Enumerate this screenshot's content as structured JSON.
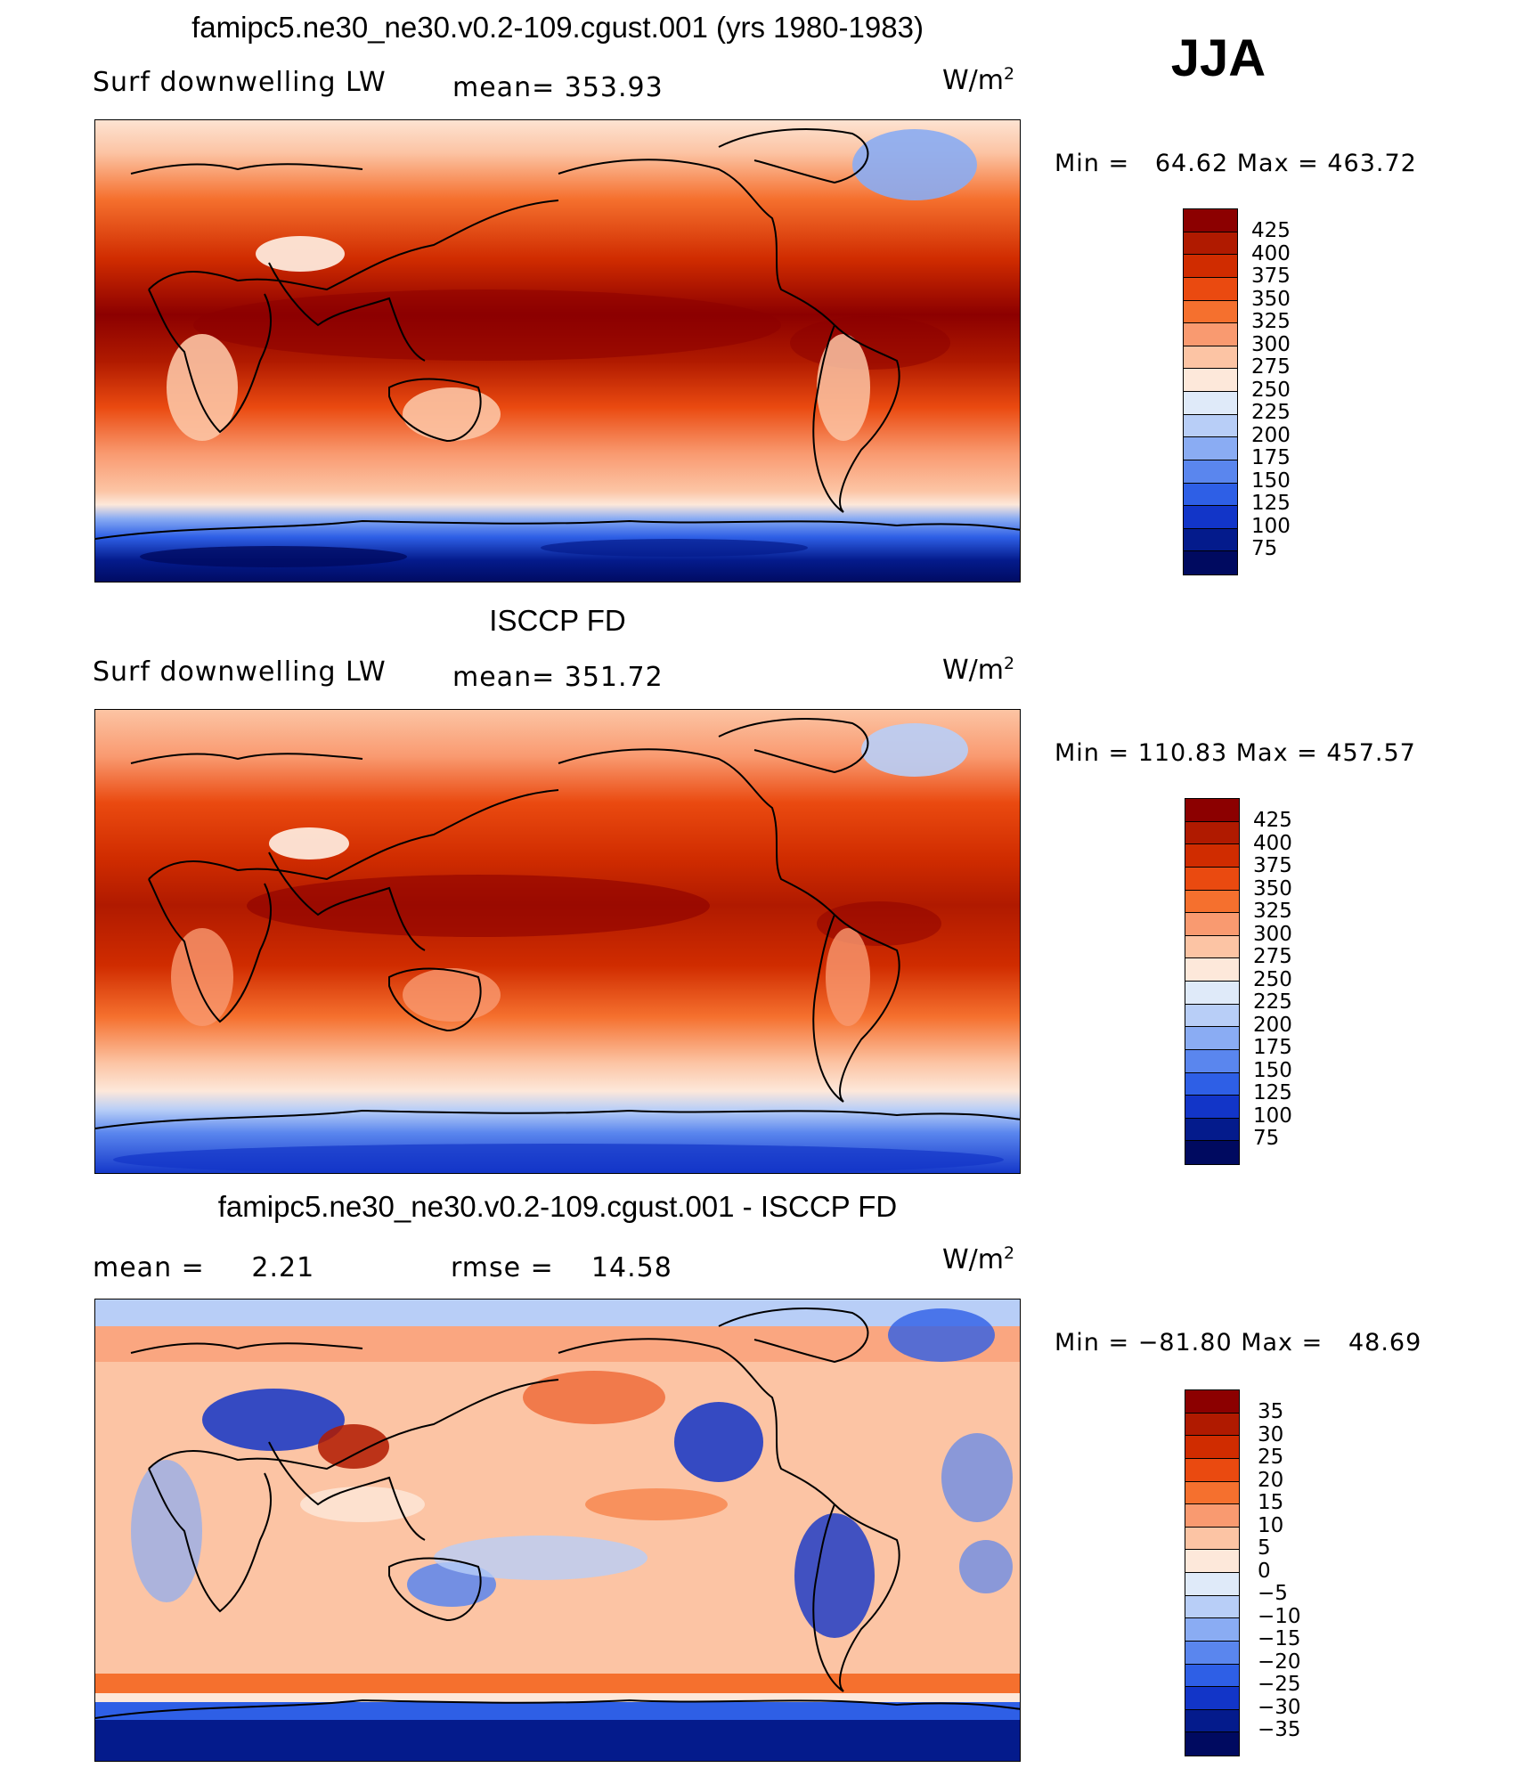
{
  "season": "JJA",
  "panels": [
    {
      "title": "famipc5.ne30_ne30.v0.2-109.cgust.001 (yrs 1980-1983)",
      "left_label": "Surf downwelling LW",
      "center_label": "mean= 353.93",
      "units": "W/m",
      "units_sup": "2",
      "minmax": "Min =   64.62 Max = 463.72",
      "colorbar_ticks": [
        "425",
        "400",
        "375",
        "350",
        "325",
        "300",
        "275",
        "250",
        "225",
        "200",
        "175",
        "150",
        "125",
        "100",
        "75"
      ],
      "colorbar_colors": [
        "#8c0000",
        "#b01a00",
        "#d02c00",
        "#ea4a10",
        "#f5702e",
        "#f99a70",
        "#fcc4a4",
        "#fde8da",
        "#dfeaf9",
        "#b8cef7",
        "#8aacf3",
        "#5a86ee",
        "#2e5fe6",
        "#1235c8",
        "#041b8c",
        "#000a60"
      ]
    },
    {
      "title": "ISCCP FD",
      "left_label": "Surf downwelling LW",
      "center_label": "mean= 351.72",
      "units": "W/m",
      "units_sup": "2",
      "minmax": "Min = 110.83 Max = 457.57",
      "colorbar_ticks": [
        "425",
        "400",
        "375",
        "350",
        "325",
        "300",
        "275",
        "250",
        "225",
        "200",
        "175",
        "150",
        "125",
        "100",
        "75"
      ],
      "colorbar_colors": [
        "#8c0000",
        "#b01a00",
        "#d02c00",
        "#ea4a10",
        "#f5702e",
        "#f99a70",
        "#fcc4a4",
        "#fde8da",
        "#dfeaf9",
        "#b8cef7",
        "#8aacf3",
        "#5a86ee",
        "#2e5fe6",
        "#1235c8",
        "#041b8c",
        "#000a60"
      ]
    },
    {
      "title": "famipc5.ne30_ne30.v0.2-109.cgust.001 - ISCCP FD",
      "left_label": "mean =     2.21",
      "center_label": "rmse =    14.58",
      "units": "W/m",
      "units_sup": "2",
      "minmax": "Min = −81.80 Max =   48.69",
      "colorbar_ticks": [
        "35",
        "30",
        "25",
        "20",
        "15",
        "10",
        "5",
        "0",
        "−5",
        "−10",
        "−15",
        "−20",
        "−25",
        "−30",
        "−35"
      ],
      "colorbar_colors": [
        "#8c0000",
        "#b01a00",
        "#d02c00",
        "#ea4a10",
        "#f5702e",
        "#f99a70",
        "#fcc4a4",
        "#fde8da",
        "#dfeaf9",
        "#b8cef7",
        "#8aacf3",
        "#5a86ee",
        "#2e5fe6",
        "#1235c8",
        "#041b8c",
        "#000a60"
      ]
    }
  ]
}
